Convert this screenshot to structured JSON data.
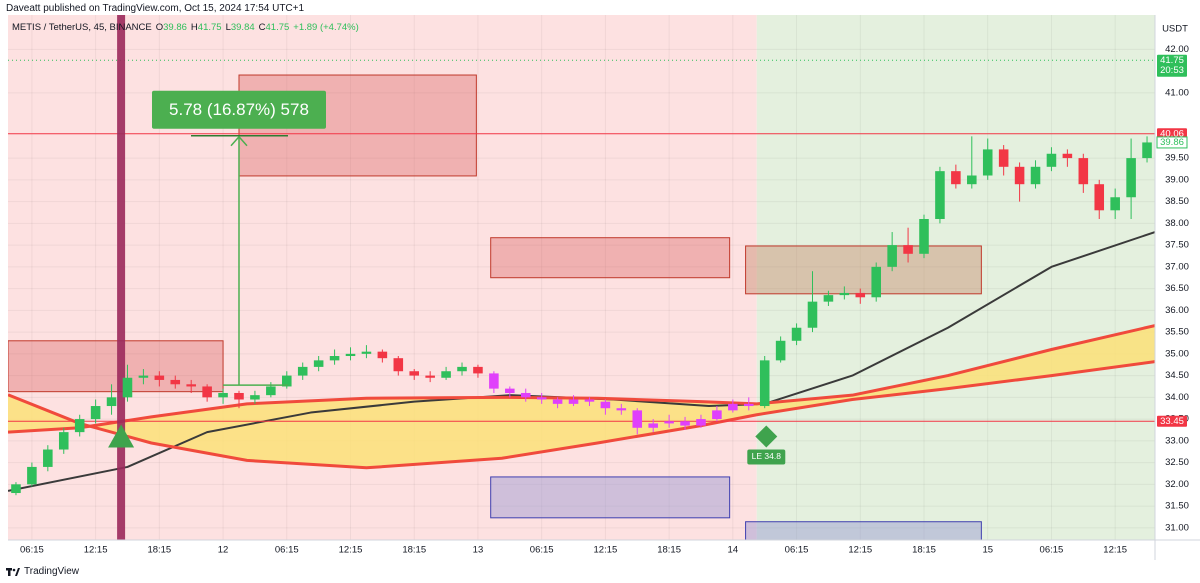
{
  "chart_data": {
    "type": "candlestick",
    "header": "Daveatt published on TradingView.com, Oct 15, 2024 17:54 UTC+1",
    "legend": {
      "symbol": "METIS / TetherUS, 45, BINANCE",
      "ohlc": [
        {
          "label": "O",
          "value": 39.86
        },
        {
          "label": "H",
          "value": 41.75
        },
        {
          "label": "L",
          "value": 39.84
        },
        {
          "label": "C",
          "value": 41.75
        }
      ],
      "change": "+1.89 (+4.74%)"
    },
    "currency": "USDT",
    "brand": "TradingView",
    "xlim": [
      -0.5,
      71.5
    ],
    "ylim": [
      30.72,
      42.79
    ],
    "xticks": [
      {
        "value": 1,
        "label": "06:15"
      },
      {
        "value": 5,
        "label": "12:15"
      },
      {
        "value": 9,
        "label": "18:15"
      },
      {
        "value": 13,
        "label": "12"
      },
      {
        "value": 17,
        "label": "06:15"
      },
      {
        "value": 21,
        "label": "12:15"
      },
      {
        "value": 25,
        "label": "18:15"
      },
      {
        "value": 29,
        "label": "13"
      },
      {
        "value": 33,
        "label": "06:15"
      },
      {
        "value": 37,
        "label": "12:15"
      },
      {
        "value": 41,
        "label": "18:15"
      },
      {
        "value": 45,
        "label": "14"
      },
      {
        "value": 49,
        "label": "06:15"
      },
      {
        "value": 53,
        "label": "12:15"
      },
      {
        "value": 57,
        "label": "18:15"
      },
      {
        "value": 61,
        "label": "15"
      },
      {
        "value": 65,
        "label": "06:15"
      },
      {
        "value": 69,
        "label": "12:15"
      }
    ],
    "yticks": [
      {
        "value": 31,
        "label": "31.00"
      },
      {
        "value": 31.5,
        "label": "31.50"
      },
      {
        "value": 32,
        "label": "32.00"
      },
      {
        "value": 32.5,
        "label": "32.50"
      },
      {
        "value": 33,
        "label": "33.00"
      },
      {
        "value": 33.5,
        "label": "33.50"
      },
      {
        "value": 34,
        "label": "34.00"
      },
      {
        "value": 34.5,
        "label": "34.50"
      },
      {
        "value": 35,
        "label": "35.00"
      },
      {
        "value": 35.5,
        "label": "35.50"
      },
      {
        "value": 36,
        "label": "36.00"
      },
      {
        "value": 36.5,
        "label": "36.50"
      },
      {
        "value": 37,
        "label": "37.00"
      },
      {
        "value": 37.5,
        "label": "37.50"
      },
      {
        "value": 38,
        "label": "38.00"
      },
      {
        "value": 38.5,
        "label": "38.50"
      },
      {
        "value": 39,
        "label": "39.00"
      },
      {
        "value": 39.5,
        "label": "39.50"
      },
      {
        "value": 41,
        "label": "41.00"
      },
      {
        "value": 42,
        "label": "42.00"
      }
    ],
    "grid": true,
    "up_color": "#2fbf5b",
    "down_color": "#f23645",
    "highlight": {
      "from": 30,
      "to": 46,
      "color": "#e040fb"
    },
    "candles": {
      "open": [
        31.8,
        32.0,
        32.4,
        32.8,
        33.2,
        33.5,
        33.8,
        34.0,
        34.45,
        34.5,
        34.4,
        34.3,
        34.25,
        34.0,
        34.1,
        33.95,
        34.05,
        34.25,
        34.5,
        34.7,
        34.85,
        34.95,
        35.0,
        35.05,
        34.9,
        34.6,
        34.5,
        34.45,
        34.6,
        34.7,
        34.55,
        34.2,
        34.1,
        34.0,
        33.95,
        33.85,
        33.95,
        33.9,
        33.75,
        33.7,
        33.3,
        33.4,
        33.45,
        33.35,
        33.5,
        33.7,
        33.85,
        33.8,
        34.85,
        35.3,
        35.6,
        36.2,
        36.35,
        36.4,
        36.3,
        37.0,
        37.5,
        37.3,
        38.1,
        39.2,
        38.9,
        39.1,
        39.7,
        39.3,
        38.9,
        39.3,
        39.6,
        39.5,
        38.9,
        38.3,
        38.6,
        39.5
      ],
      "high": [
        32.05,
        32.5,
        32.9,
        33.3,
        33.6,
        33.95,
        34.3,
        34.75,
        34.65,
        34.6,
        34.5,
        34.4,
        34.3,
        34.2,
        34.15,
        34.15,
        34.35,
        34.6,
        34.8,
        34.95,
        35.1,
        35.15,
        35.2,
        35.1,
        34.95,
        34.65,
        34.6,
        34.7,
        34.8,
        34.75,
        34.6,
        34.25,
        34.2,
        34.1,
        34.0,
        34.05,
        34.0,
        33.95,
        33.85,
        33.75,
        33.5,
        33.6,
        33.55,
        33.6,
        33.8,
        33.95,
        34.0,
        34.95,
        35.4,
        35.7,
        36.9,
        36.45,
        36.55,
        36.5,
        37.1,
        37.8,
        37.9,
        38.2,
        39.3,
        39.35,
        40.0,
        39.95,
        39.8,
        39.4,
        39.45,
        39.75,
        39.7,
        39.6,
        39.0,
        38.8,
        39.95,
        40.0
      ],
      "low": [
        31.75,
        31.95,
        32.3,
        32.7,
        33.1,
        33.4,
        33.6,
        33.9,
        34.3,
        34.25,
        34.2,
        34.1,
        33.9,
        33.85,
        33.75,
        33.85,
        34.0,
        34.2,
        34.4,
        34.6,
        34.75,
        34.85,
        34.9,
        34.8,
        34.5,
        34.4,
        34.35,
        34.4,
        34.5,
        34.45,
        34.1,
        34.0,
        33.9,
        33.85,
        33.75,
        33.8,
        33.8,
        33.6,
        33.6,
        33.15,
        33.2,
        33.3,
        33.25,
        33.3,
        33.45,
        33.65,
        33.7,
        33.75,
        34.8,
        35.2,
        35.5,
        36.1,
        36.25,
        36.15,
        36.2,
        36.9,
        37.1,
        37.2,
        38.0,
        38.8,
        38.8,
        39.0,
        39.1,
        38.5,
        38.8,
        39.2,
        39.3,
        38.7,
        38.1,
        38.1,
        38.1,
        39.4
      ],
      "close": [
        32.0,
        32.4,
        32.8,
        33.2,
        33.5,
        33.8,
        34.0,
        34.45,
        34.5,
        34.4,
        34.3,
        34.25,
        34.0,
        34.1,
        33.95,
        34.05,
        34.25,
        34.5,
        34.7,
        34.85,
        34.95,
        35.0,
        35.05,
        34.9,
        34.6,
        34.5,
        34.45,
        34.6,
        34.7,
        34.55,
        34.2,
        34.1,
        34.0,
        33.95,
        33.85,
        33.95,
        33.9,
        33.75,
        33.7,
        33.3,
        33.4,
        33.45,
        33.35,
        33.5,
        33.7,
        33.85,
        33.8,
        34.85,
        35.3,
        35.6,
        36.2,
        36.35,
        36.4,
        36.3,
        37.0,
        37.5,
        37.3,
        38.1,
        39.2,
        38.9,
        39.1,
        39.7,
        39.3,
        38.9,
        39.3,
        39.6,
        39.5,
        38.9,
        38.3,
        38.6,
        39.5,
        39.86
      ]
    },
    "backgrounds": [
      {
        "x": [
          -0.5,
          46.5
        ],
        "color": "#fde1e1"
      },
      {
        "x": [
          46.5,
          71.5
        ],
        "color": "#e4f0de"
      }
    ],
    "zones": [
      {
        "x": [
          -0.5,
          13
        ],
        "y": [
          34.13,
          35.3
        ],
        "color": "rgba(214,90,90,0.35)",
        "border": "#c0392b"
      },
      {
        "x": [
          14,
          28.9
        ],
        "y": [
          39.09,
          41.41
        ],
        "color": "rgba(214,90,90,0.35)",
        "border": "#c0392b"
      },
      {
        "x": [
          29.8,
          44.8
        ],
        "y": [
          36.75,
          37.67
        ],
        "color": "rgba(214,90,90,0.35)",
        "border": "#c0392b"
      },
      {
        "x": [
          45.8,
          60.6
        ],
        "y": [
          36.38,
          37.48
        ],
        "color": "rgba(200,140,110,0.45)",
        "border": "#c0392b"
      },
      {
        "x": [
          29.8,
          44.8
        ],
        "y": [
          31.23,
          32.17
        ],
        "color": "rgba(150,150,210,0.45)",
        "border": "#3f3fb0"
      },
      {
        "x": [
          45.8,
          60.6
        ],
        "y": [
          30.6,
          31.14
        ],
        "color": "rgba(150,150,210,0.45)",
        "border": "#3f3fb0"
      }
    ],
    "overlays": [
      {
        "x": [
          -0.5,
          7,
          12,
          18.5,
          25,
          31,
          37.5,
          43.5,
          47,
          52.5,
          58.5,
          65,
          71.5
        ],
        "values": [
          31.85,
          32.4,
          33.2,
          33.65,
          33.9,
          34.05,
          33.95,
          33.8,
          33.85,
          34.5,
          35.6,
          37.0,
          37.8
        ],
        "color": "#3a3a3a"
      },
      {
        "x": [
          -0.5,
          4,
          8.5,
          14.5,
          22,
          30.5,
          36.5,
          43,
          46.5,
          52.5,
          58.5,
          65,
          71.5
        ],
        "values": [
          34.06,
          33.4,
          32.95,
          32.55,
          32.38,
          32.6,
          32.95,
          33.35,
          33.6,
          33.95,
          34.2,
          34.5,
          34.82
        ],
        "color": "#f04a3c"
      },
      {
        "x": [
          -0.5,
          4,
          8.5,
          14.5,
          22,
          30.5,
          36.5,
          43,
          46.5,
          52.5,
          58.5,
          65,
          71.5
        ],
        "values": [
          33.2,
          33.3,
          33.55,
          33.85,
          33.98,
          34.0,
          33.98,
          33.9,
          33.85,
          34.05,
          34.5,
          35.1,
          35.65
        ],
        "color": "#f04a3c"
      }
    ],
    "fill_between": {
      "series": [
        1,
        2
      ],
      "color": "rgba(252,225,120,0.85)"
    },
    "levels": [
      {
        "value": 40.06,
        "color": "#f23645",
        "style": "solid"
      },
      {
        "value": 33.45,
        "color": "#f23645",
        "style": "solid"
      },
      {
        "value": 41.75,
        "color": "#2fbf5b",
        "style": "dotted",
        "countdown": "20:53"
      }
    ],
    "close_tag": {
      "value": 39.86,
      "color": "#2fbf5b"
    },
    "vline": {
      "x": 6.6,
      "color": "#9c2a5c"
    },
    "signals": [
      {
        "shape": "triangle",
        "x": 6.6,
        "value": 33.1,
        "color": "#3fa34d"
      },
      {
        "shape": "diamond",
        "x": 47.1,
        "value": 33.1,
        "color": "#3fa34d",
        "label": "LE 34.8"
      }
    ],
    "measure": {
      "x": 14,
      "from": 34.28,
      "to": 40.06,
      "label": "5.78 (16.87%) 578",
      "color": "#4caf50"
    }
  }
}
